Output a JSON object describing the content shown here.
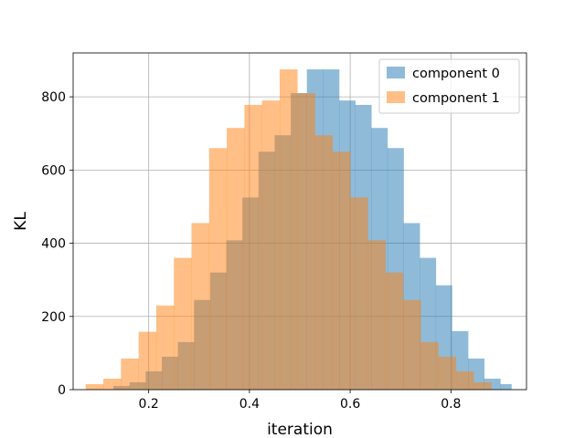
{
  "chart_data": {
    "type": "bar",
    "subtype": "overlapping histogram",
    "title": "",
    "xlabel": "iteration",
    "ylabel": "KL",
    "xlim": [
      0.05,
      0.95
    ],
    "ylim": [
      0,
      920
    ],
    "xticks": [
      0.2,
      0.4,
      0.6,
      0.8
    ],
    "xtick_labels": [
      "0.2",
      "0.4",
      "0.6",
      "0.8"
    ],
    "yticks": [
      0,
      200,
      400,
      600,
      800
    ],
    "ytick_labels": [
      "0",
      "200",
      "400",
      "600",
      "800"
    ],
    "grid": true,
    "legend_position": "upper right",
    "bar_opacity": 0.5,
    "series": [
      {
        "name": "component 0",
        "color": "#1f77b4",
        "bin_edges": [
          0.13,
          0.162,
          0.194,
          0.226,
          0.258,
          0.29,
          0.322,
          0.354,
          0.386,
          0.418,
          0.45,
          0.482,
          0.514,
          0.546,
          0.578,
          0.61,
          0.642,
          0.674,
          0.706,
          0.738,
          0.77,
          0.802,
          0.834,
          0.866,
          0.898,
          0.92
        ],
        "counts": [
          10,
          20,
          50,
          90,
          130,
          245,
          320,
          408,
          525,
          650,
          695,
          810,
          875,
          875,
          790,
          778,
          715,
          660,
          455,
          360,
          285,
          160,
          85,
          30,
          15
        ]
      },
      {
        "name": "component 1",
        "color": "#ff7f0e",
        "bin_edges": [
          0.075,
          0.11,
          0.145,
          0.18,
          0.215,
          0.25,
          0.285,
          0.32,
          0.355,
          0.39,
          0.425,
          0.46,
          0.495,
          0.53,
          0.565,
          0.6,
          0.635,
          0.67,
          0.705,
          0.74,
          0.775,
          0.81,
          0.845,
          0.88
        ],
        "counts": [
          15,
          30,
          85,
          158,
          230,
          360,
          455,
          660,
          715,
          778,
          790,
          875,
          810,
          695,
          650,
          525,
          408,
          320,
          245,
          130,
          90,
          50,
          20
        ]
      }
    ]
  }
}
